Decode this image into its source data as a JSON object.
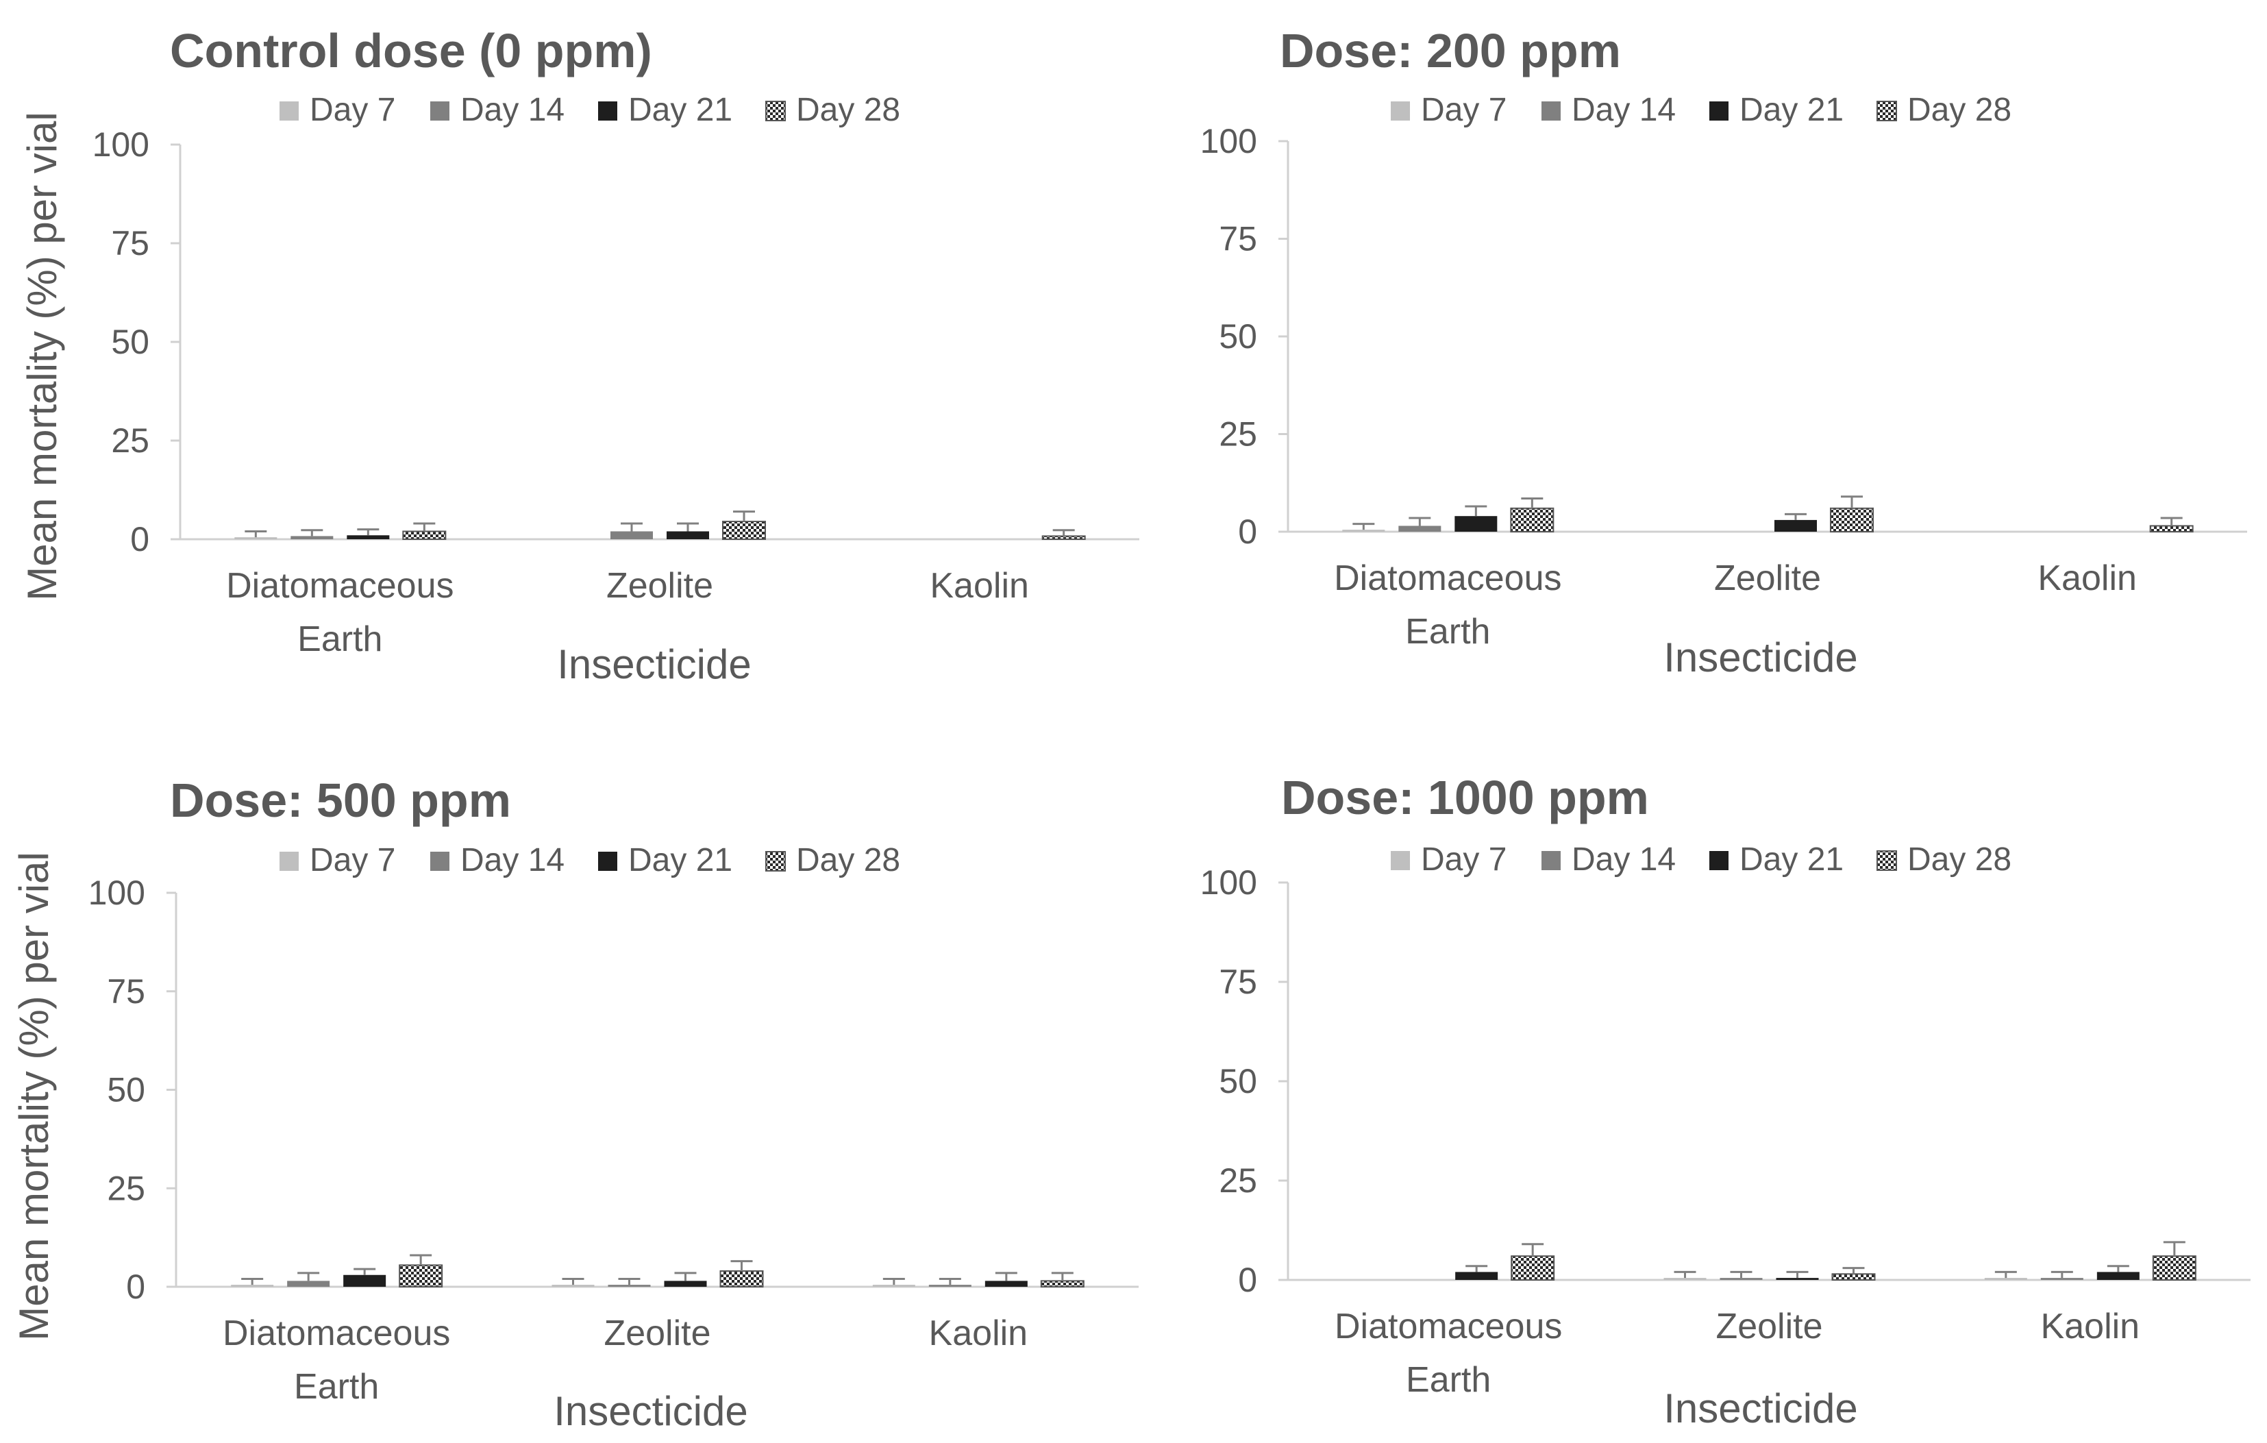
{
  "legend_labels": [
    "Day 7",
    "Day 14",
    "Day 21",
    "Day 28"
  ],
  "series_colors": {
    "Day 7": "#bfbfbf",
    "Day 14": "#808080",
    "Day 21": "#1e1e1e",
    "Day 28": "pattern"
  },
  "chart_data": [
    {
      "type": "bar",
      "title": "Control dose (0 ppm)",
      "ylabel": "Mean mortality (%) per vial",
      "xlabel": "Insecticide",
      "ylim": [
        0,
        100
      ],
      "yticks": [
        "100",
        "75",
        "50",
        "25",
        "0"
      ],
      "categories": [
        [
          "Diatomaceous",
          "Earth"
        ],
        [
          "Zeolite"
        ],
        [
          "Kaolin"
        ]
      ],
      "series": [
        {
          "name": "Day 7",
          "values": [
            0.5,
            0,
            0
          ],
          "errors": [
            1.5,
            0,
            0
          ]
        },
        {
          "name": "Day 14",
          "values": [
            0.8,
            2,
            0
          ],
          "errors": [
            1.5,
            2,
            0
          ]
        },
        {
          "name": "Day 21",
          "values": [
            1,
            2,
            0
          ],
          "errors": [
            1.5,
            2,
            0
          ]
        },
        {
          "name": "Day 28",
          "values": [
            2,
            4.5,
            0.8
          ],
          "errors": [
            2,
            2.5,
            1.5
          ]
        }
      ]
    },
    {
      "type": "bar",
      "title": "Dose: 200 ppm",
      "ylabel": "",
      "xlabel": "Insecticide",
      "ylim": [
        0,
        100
      ],
      "yticks": [
        "100",
        "75",
        "50",
        "25",
        "0"
      ],
      "categories": [
        [
          "Diatomaceous",
          "Earth"
        ],
        [
          "Zeolite"
        ],
        [
          "Kaolin"
        ]
      ],
      "series": [
        {
          "name": "Day 7",
          "values": [
            0.5,
            0,
            0
          ],
          "errors": [
            1.5,
            0,
            0
          ]
        },
        {
          "name": "Day 14",
          "values": [
            1.5,
            0,
            0
          ],
          "errors": [
            2,
            0,
            0
          ]
        },
        {
          "name": "Day 21",
          "values": [
            4,
            3,
            0
          ],
          "errors": [
            2.5,
            1.5,
            0
          ]
        },
        {
          "name": "Day 28",
          "values": [
            6,
            6,
            1.5
          ],
          "errors": [
            2.5,
            3,
            2
          ]
        }
      ]
    },
    {
      "type": "bar",
      "title": "Dose: 500 ppm",
      "ylabel": "Mean mortality (%) per vial",
      "xlabel": "Insecticide",
      "ylim": [
        0,
        100
      ],
      "yticks": [
        "100",
        "75",
        "50",
        "25",
        "0"
      ],
      "categories": [
        [
          "Diatomaceous",
          "Earth"
        ],
        [
          "Zeolite"
        ],
        [
          "Kaolin"
        ]
      ],
      "series": [
        {
          "name": "Day 7",
          "values": [
            0.5,
            0.5,
            0.5
          ],
          "errors": [
            1.5,
            1.5,
            1.5
          ]
        },
        {
          "name": "Day 14",
          "values": [
            1.5,
            0.5,
            0.5
          ],
          "errors": [
            2,
            1.5,
            1.5
          ]
        },
        {
          "name": "Day 21",
          "values": [
            3,
            1.5,
            1.5
          ],
          "errors": [
            1.5,
            2,
            2
          ]
        },
        {
          "name": "Day 28",
          "values": [
            5.5,
            4,
            1.5
          ],
          "errors": [
            2.5,
            2.5,
            2
          ]
        }
      ]
    },
    {
      "type": "bar",
      "title": "Dose: 1000 ppm",
      "ylabel": "",
      "xlabel": "Insecticide",
      "ylim": [
        0,
        100
      ],
      "yticks": [
        "100",
        "75",
        "50",
        "25",
        "0"
      ],
      "categories": [
        [
          "Diatomaceous",
          "Earth"
        ],
        [
          "Zeolite"
        ],
        [
          "Kaolin"
        ]
      ],
      "series": [
        {
          "name": "Day 7",
          "values": [
            0,
            0.5,
            0.5
          ],
          "errors": [
            0,
            1.5,
            1.5
          ]
        },
        {
          "name": "Day 14",
          "values": [
            0,
            0.5,
            0.5
          ],
          "errors": [
            0,
            1.5,
            1.5
          ]
        },
        {
          "name": "Day 21",
          "values": [
            2,
            0.5,
            2
          ],
          "errors": [
            1.5,
            1.5,
            1.5
          ]
        },
        {
          "name": "Day 28",
          "values": [
            6,
            1.5,
            6
          ],
          "errors": [
            3,
            1.5,
            3.5
          ]
        }
      ]
    }
  ]
}
